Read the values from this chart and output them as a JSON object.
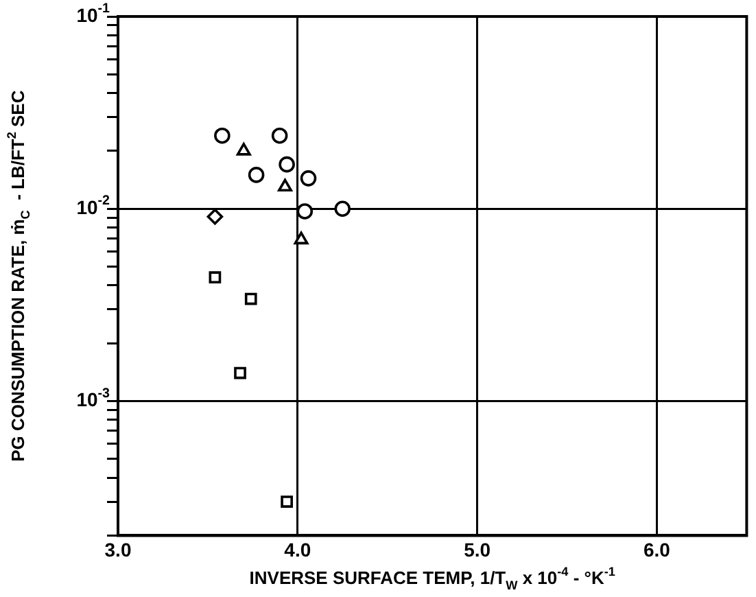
{
  "chart_data": {
    "type": "scatter",
    "xlabel": "INVERSE SURFACE TEMP, 1/T$_{W}$ x 10$^{-4}$ - °K$^{-1}$",
    "ylabel": "PG CONSUMPTION RATE, ṁ$_{C}$  - LB/FT$^{2}$ SEC",
    "log": "y",
    "grid": true,
    "legend": false,
    "xlim": [
      3.0,
      6.5
    ],
    "xticks": [
      {
        "value": 3,
        "label": "3.0"
      },
      {
        "value": 4,
        "label": "4.0"
      },
      {
        "value": 5,
        "label": "5.0"
      },
      {
        "value": 6,
        "label": "6.0"
      }
    ],
    "ylim": [
      0.0002,
      0.1
    ],
    "yticks": [
      {
        "value": 0.0002,
        "label": null
      },
      {
        "value": 0.0003,
        "label": null
      },
      {
        "value": 0.0004,
        "label": null
      },
      {
        "value": 0.0005,
        "label": null
      },
      {
        "value": 0.0006,
        "label": null
      },
      {
        "value": 0.0007,
        "label": null
      },
      {
        "value": 0.0008,
        "label": null
      },
      {
        "value": 0.0009,
        "label": null
      },
      {
        "value": 0.001,
        "label": "10$^{-3}$"
      },
      {
        "value": 0.002,
        "label": null
      },
      {
        "value": 0.003,
        "label": null
      },
      {
        "value": 0.004,
        "label": null
      },
      {
        "value": 0.005,
        "label": null
      },
      {
        "value": 0.006,
        "label": null
      },
      {
        "value": 0.007,
        "label": null
      },
      {
        "value": 0.008,
        "label": null
      },
      {
        "value": 0.009,
        "label": null
      },
      {
        "value": 0.01,
        "label": "10$^{-2}$"
      },
      {
        "value": 0.02,
        "label": null
      },
      {
        "value": 0.03,
        "label": null
      },
      {
        "value": 0.04,
        "label": null
      },
      {
        "value": 0.05,
        "label": null
      },
      {
        "value": 0.06,
        "label": null
      },
      {
        "value": 0.07,
        "label": null
      },
      {
        "value": 0.08,
        "label": null
      },
      {
        "value": 0.09,
        "label": null
      },
      {
        "value": 0.1,
        "label": "10$^{-1}$"
      }
    ],
    "series": [
      {
        "marker": "circle",
        "color": "#000000",
        "x": [
          3.58,
          3.9,
          3.94,
          3.77,
          4.06,
          4.04,
          4.25
        ],
        "values": [
          0.024,
          0.024,
          0.017,
          0.015,
          0.0144,
          0.0097,
          0.01
        ]
      },
      {
        "marker": "triangle",
        "color": "#000000",
        "x": [
          3.7,
          3.93,
          4.02
        ],
        "values": [
          0.02,
          0.013,
          0.0069
        ]
      },
      {
        "marker": "diamond",
        "color": "#000000",
        "x": [
          3.54
        ],
        "values": [
          0.0091
        ]
      },
      {
        "marker": "square",
        "color": "#000000",
        "x": [
          3.54,
          3.74,
          3.68,
          3.94
        ],
        "values": [
          0.0044,
          0.0034,
          0.0014,
          0.0003
        ]
      }
    ]
  }
}
